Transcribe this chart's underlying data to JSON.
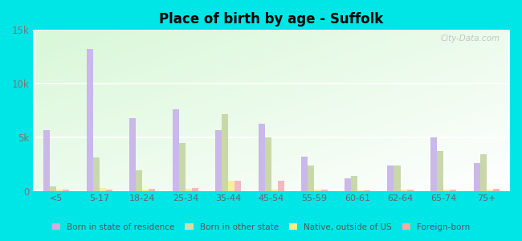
{
  "title": "Place of birth by age - Suffolk",
  "categories": [
    "<5",
    "5-17",
    "18-24",
    "25-34",
    "35-44",
    "45-54",
    "55-59",
    "60-61",
    "62-64",
    "65-74",
    "75+"
  ],
  "series": {
    "Born in state of residence": [
      5700,
      13200,
      6800,
      7600,
      5700,
      6300,
      3200,
      1200,
      2400,
      5000,
      2600
    ],
    "Born in other state": [
      400,
      3100,
      1900,
      4500,
      7200,
      5000,
      2400,
      1400,
      2400,
      3700,
      3400
    ],
    "Native, outside of US": [
      100,
      300,
      150,
      200,
      950,
      100,
      100,
      50,
      100,
      100,
      150
    ],
    "Foreign-born": [
      100,
      150,
      200,
      300,
      950,
      950,
      100,
      50,
      100,
      150,
      200
    ]
  },
  "colors": {
    "Born in state of residence": "#c9b8e8",
    "Born in other state": "#c8d8a8",
    "Native, outside of US": "#f5f0a0",
    "Foreign-born": "#f5b8c0"
  },
  "ylim": [
    0,
    15000
  ],
  "yticks": [
    0,
    5000,
    10000,
    15000
  ],
  "ytick_labels": [
    "0",
    "5k",
    "10k",
    "15k"
  ],
  "background_color": "#00e5e5",
  "watermark": "City-Data.com",
  "bar_width": 0.15,
  "legend_colors": {
    "Born in state of residence": "#d8aadd",
    "Born in other state": "#d5dda8",
    "Native, outside of US": "#f5f080",
    "Foreign-born": "#f5aaaa"
  }
}
